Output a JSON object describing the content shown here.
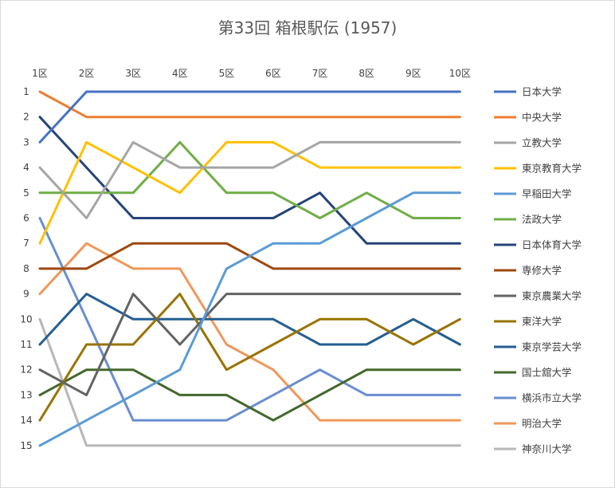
{
  "chart_data": {
    "type": "line",
    "title": "第33回 箱根駅伝 (1957)",
    "x": [
      "1区",
      "2区",
      "3区",
      "4区",
      "5区",
      "6区",
      "7区",
      "8区",
      "9区",
      "10区"
    ],
    "y_ticks": [
      1,
      2,
      3,
      4,
      5,
      6,
      7,
      8,
      9,
      10,
      11,
      12,
      13,
      14,
      15
    ],
    "ylim": [
      15,
      1
    ],
    "y_reversed": true,
    "grid": false,
    "legend_position": "right",
    "series": [
      {
        "name": "日本大学",
        "color": "#4472C4",
        "values": [
          3,
          1,
          1,
          1,
          1,
          1,
          1,
          1,
          1,
          1
        ]
      },
      {
        "name": "中央大学",
        "color": "#ED7D31",
        "values": [
          1,
          2,
          2,
          2,
          2,
          2,
          2,
          2,
          2,
          2
        ]
      },
      {
        "name": "立教大学",
        "color": "#A5A5A5",
        "values": [
          4,
          6,
          3,
          4,
          4,
          4,
          3,
          3,
          3,
          3
        ]
      },
      {
        "name": "東京教育大学",
        "color": "#FFC000",
        "values": [
          7,
          3,
          4,
          5,
          3,
          3,
          4,
          4,
          4,
          4
        ]
      },
      {
        "name": "早稲田大学",
        "color": "#5B9BD5",
        "values": [
          15,
          14,
          13,
          12,
          8,
          7,
          7,
          6,
          5,
          5
        ]
      },
      {
        "name": "法政大学",
        "color": "#70AD47",
        "values": [
          5,
          5,
          5,
          3,
          5,
          5,
          6,
          5,
          6,
          6
        ]
      },
      {
        "name": "日本体育大学",
        "color": "#264478",
        "values": [
          2,
          4,
          6,
          6,
          6,
          6,
          5,
          7,
          7,
          7
        ]
      },
      {
        "name": "専修大学",
        "color": "#9E480E",
        "values": [
          8,
          8,
          7,
          7,
          7,
          8,
          8,
          8,
          8,
          8
        ]
      },
      {
        "name": "東京農業大学",
        "color": "#636363",
        "values": [
          12,
          13,
          9,
          11,
          9,
          9,
          9,
          9,
          9,
          9
        ]
      },
      {
        "name": "東洋大学",
        "color": "#997300",
        "values": [
          14,
          11,
          11,
          9,
          12,
          11,
          10,
          10,
          11,
          10
        ]
      },
      {
        "name": "東京学芸大学",
        "color": "#255E91",
        "values": [
          11,
          9,
          10,
          10,
          10,
          10,
          11,
          11,
          10,
          11
        ]
      },
      {
        "name": "国士舘大学",
        "color": "#43682B",
        "values": [
          13,
          12,
          12,
          13,
          13,
          14,
          13,
          12,
          12,
          12
        ]
      },
      {
        "name": "横浜市立大学",
        "color": "#698ED0",
        "values": [
          6,
          10,
          14,
          14,
          14,
          13,
          12,
          13,
          13,
          13
        ]
      },
      {
        "name": "明治大学",
        "color": "#F1975A",
        "values": [
          9,
          7,
          8,
          8,
          11,
          12,
          14,
          14,
          14,
          14
        ]
      },
      {
        "name": "神奈川大学",
        "color": "#B7B7B7",
        "values": [
          10,
          15,
          15,
          15,
          15,
          15,
          15,
          15,
          15,
          15
        ]
      }
    ]
  }
}
